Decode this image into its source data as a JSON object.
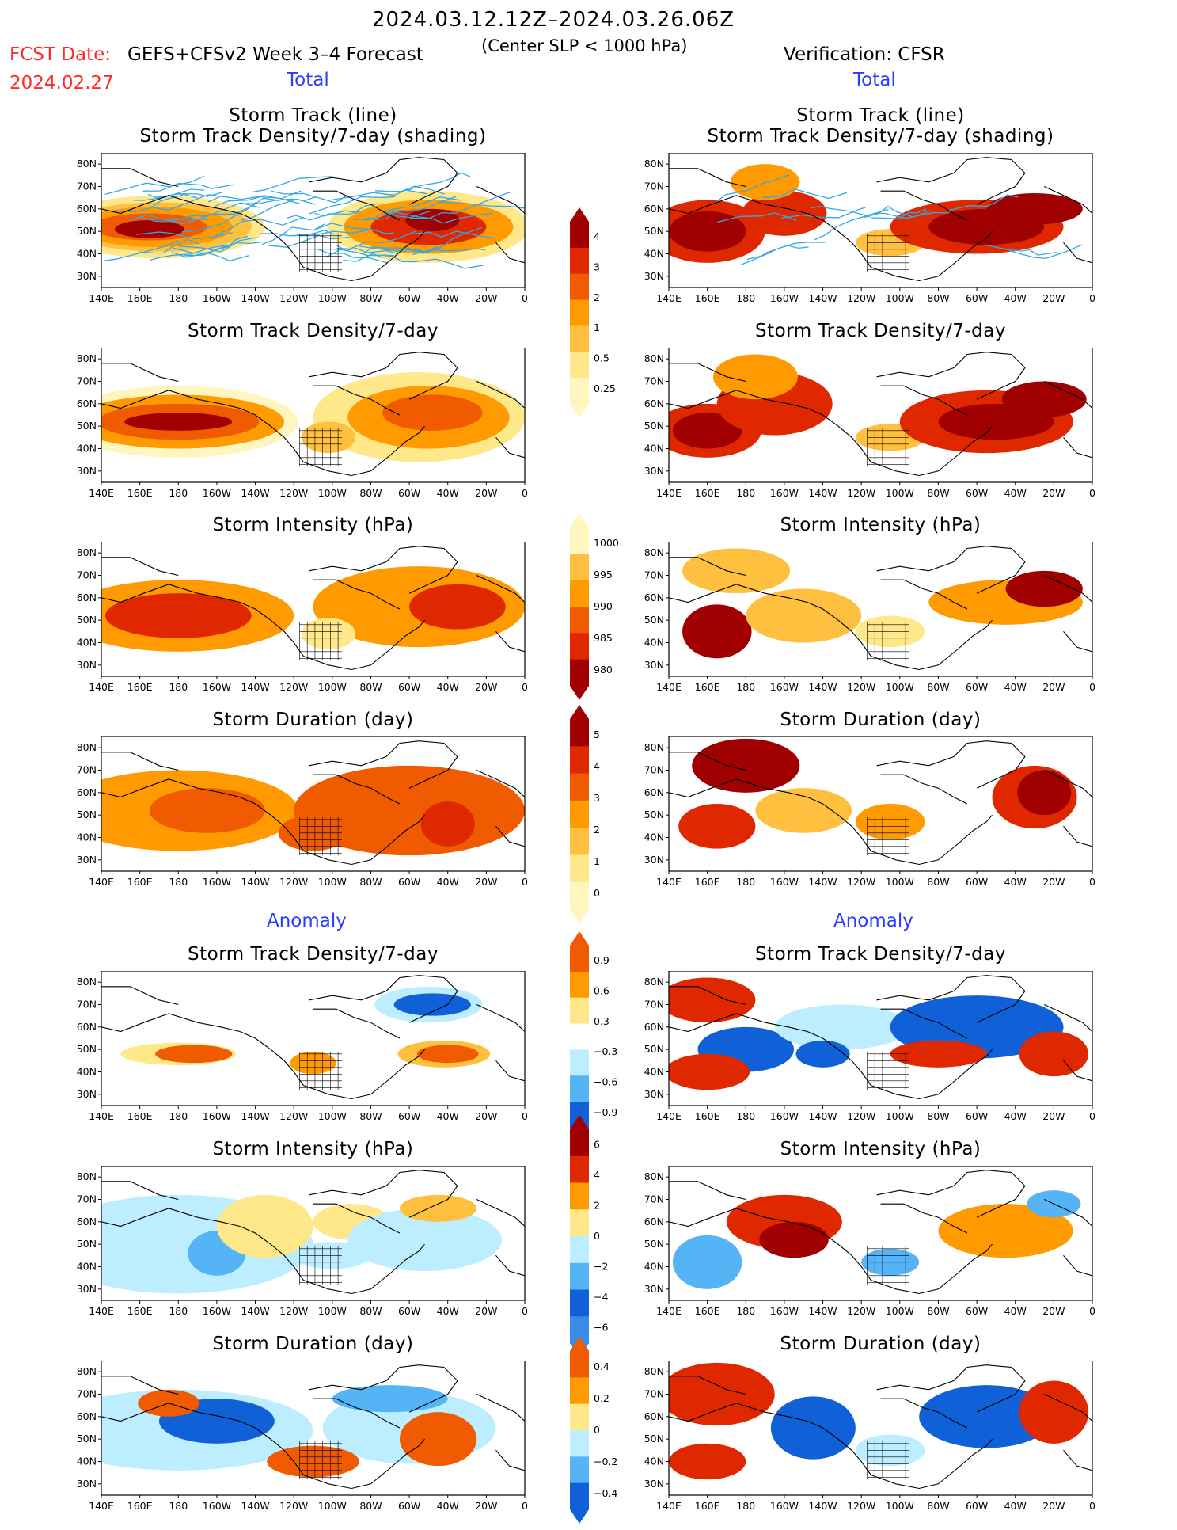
{
  "header": {
    "date_range": "2024.03.12.12Z–2024.03.26.06Z",
    "fcst_date_label": "FCST Date:",
    "fcst_date_value": "2024.02.27",
    "forecast_label": "GEFS+CFSv2 Week 3–4 Forecast",
    "center_slp": "(Center SLP < 1000 hPa)",
    "verification": "Verification: CFSR"
  },
  "sections": {
    "total_left": "Total",
    "total_right": "Total",
    "anomaly_left": "Anomaly",
    "anomaly_right": "Anomaly"
  },
  "panels": [
    {
      "title1": "Storm Track (line)",
      "title2": "Storm Track Density/7-day (shading)"
    },
    {
      "title1": "Storm Track (line)",
      "title2": "Storm Track Density/7-day (shading)"
    },
    {
      "title1": "Storm Track Density/7-day"
    },
    {
      "title1": "Storm Track Density/7-day"
    },
    {
      "title1": "Storm Intensity (hPa)"
    },
    {
      "title1": "Storm Intensity (hPa)"
    },
    {
      "title1": "Storm Duration (day)"
    },
    {
      "title1": "Storm Duration (day)"
    },
    {
      "title1": "Storm Track Density/7-day"
    },
    {
      "title1": "Storm Track Density/7-day"
    },
    {
      "title1": "Storm Intensity (hPa)"
    },
    {
      "title1": "Storm Intensity (hPa)"
    },
    {
      "title1": "Storm Duration (day)"
    },
    {
      "title1": "Storm Duration (day)"
    }
  ],
  "axes": {
    "lat_labels": [
      "80N",
      "70N",
      "60N",
      "50N",
      "40N",
      "30N"
    ],
    "lon_labels": [
      "140E",
      "160E",
      "180",
      "160W",
      "140W",
      "120W",
      "100W",
      "80W",
      "60W",
      "40W",
      "20W",
      "0"
    ]
  },
  "colorbars": {
    "density_total": [
      "4",
      "3",
      "2",
      "1",
      "0.5",
      "0.25"
    ],
    "intensity_total": [
      "1000",
      "995",
      "990",
      "985",
      "980"
    ],
    "duration_total": [
      "5",
      "4",
      "3",
      "2",
      "1",
      "0"
    ],
    "density_anom": [
      "0.9",
      "0.6",
      "0.3",
      "−0.3",
      "−0.6",
      "−0.9"
    ],
    "intensity_anom": [
      "6",
      "4",
      "2",
      "0",
      "−2",
      "−4",
      "−6"
    ],
    "duration_anom": [
      "0.4",
      "0.2",
      "0",
      "−0.2",
      "−0.4"
    ]
  },
  "colors": {
    "dark_red": "#a00000",
    "red": "#e02800",
    "orange_red": "#f05a00",
    "orange": "#ff9a00",
    "light_orange": "#ffc040",
    "yellow": "#ffe88a",
    "pale_yellow": "#fff6bf",
    "light_blue": "#bdeeff",
    "mid_blue": "#55b4f5",
    "dark_blue": "#1060d8",
    "track_blue": "#35a8e6",
    "header_red": "#ff2a2a",
    "header_blue": "#2a3cff"
  }
}
